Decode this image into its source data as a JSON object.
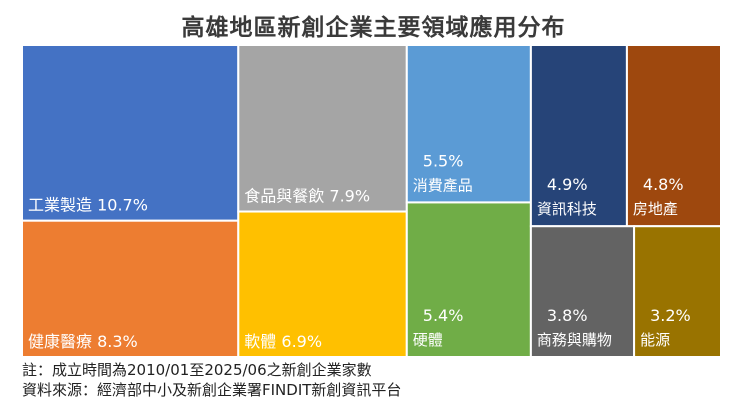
{
  "chart_data": {
    "type": "treemap",
    "title": "高雄地區新創企業主要領域應用分布",
    "items": [
      {
        "name": "工業製造",
        "value": 10.7,
        "label": "10.7%",
        "color": "#4472C4"
      },
      {
        "name": "健康醫療",
        "value": 8.3,
        "label": "8.3%",
        "color": "#ED7D31"
      },
      {
        "name": "食品與餐飲",
        "value": 7.9,
        "label": "7.9%",
        "color": "#A5A5A5"
      },
      {
        "name": "軟體",
        "value": 6.9,
        "label": "6.9%",
        "color": "#FFC000"
      },
      {
        "name": "消費產品",
        "value": 5.5,
        "label": "5.5%",
        "color": "#5B9BD5"
      },
      {
        "name": "硬體",
        "value": 5.4,
        "label": "5.4%",
        "color": "#70AD47"
      },
      {
        "name": "資訊科技",
        "value": 4.9,
        "label": "4.9%",
        "color": "#264478"
      },
      {
        "name": "房地產",
        "value": 4.8,
        "label": "4.8%",
        "color": "#9E480E"
      },
      {
        "name": "商務與購物",
        "value": 3.8,
        "label": "3.8%",
        "color": "#636363"
      },
      {
        "name": "能源",
        "value": 3.2,
        "label": "3.2%",
        "color": "#997300"
      }
    ]
  },
  "notes": {
    "line1": "註：成立時間為2010/01至2025/06之新創企業家數",
    "line2": "資料來源：經濟部中小及新創企業署FINDIT新創資訊平台"
  }
}
